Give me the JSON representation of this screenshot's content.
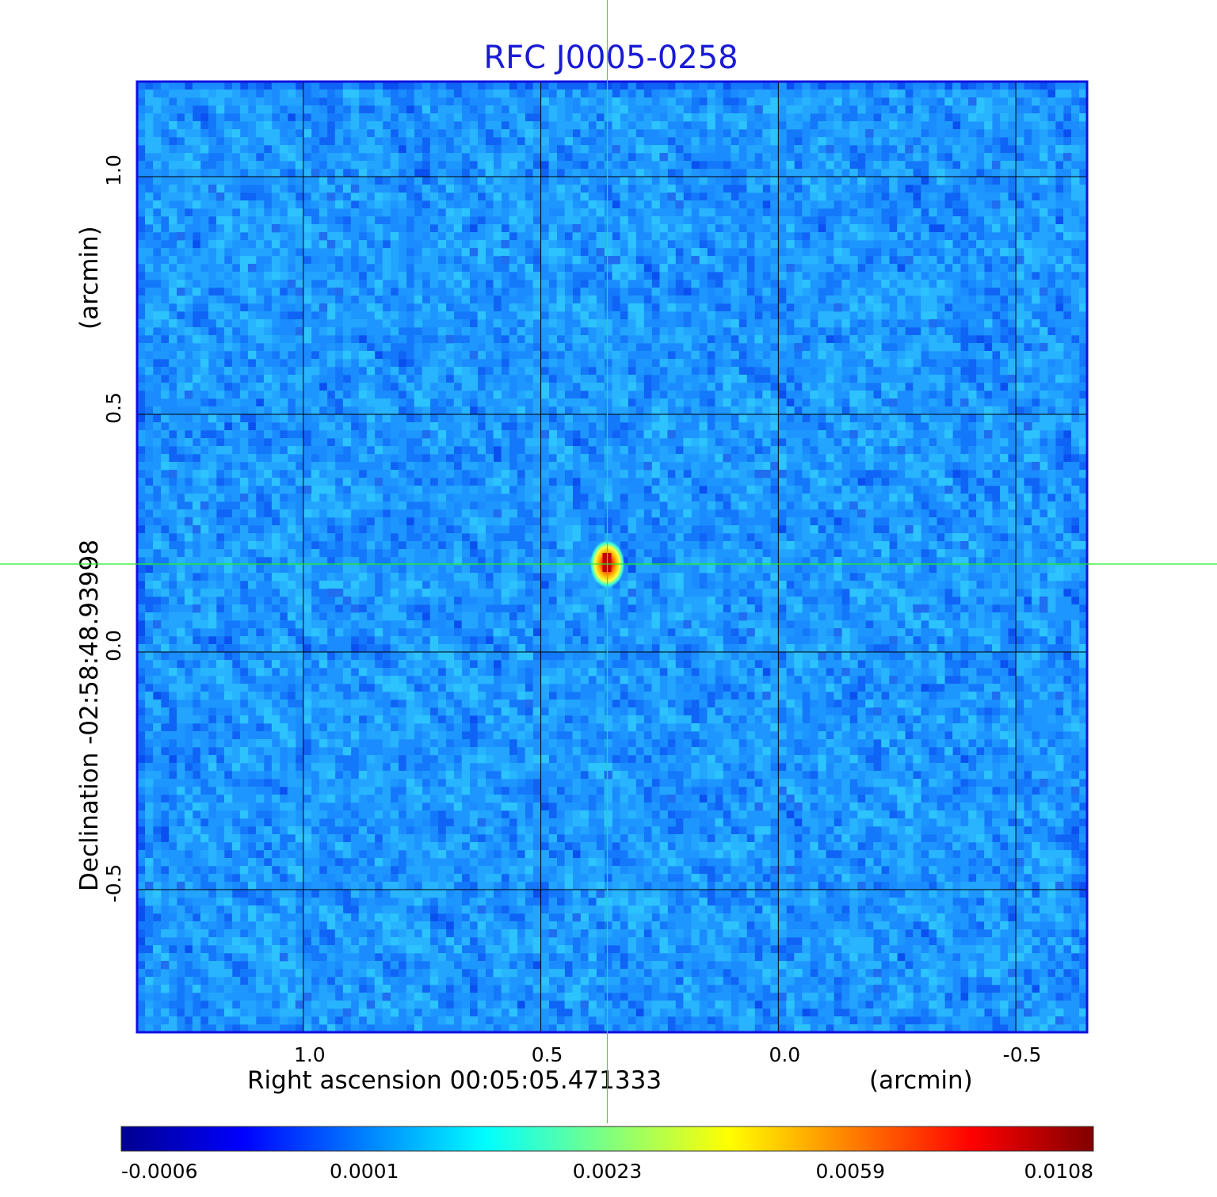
{
  "chart_data": {
    "type": "heatmap",
    "title": "RFC J0005-0258",
    "xlabel": "Right ascension  00:05:05.471333",
    "xunit": "(arcmin)",
    "ylabel": "Declination  -02:58:48.93998",
    "yunit": "(arcmin)",
    "xlim": [
      1.35,
      -0.65
    ],
    "ylim": [
      -0.8,
      1.2
    ],
    "x_ticks": [
      1.0,
      0.5,
      0.0,
      -0.5
    ],
    "x_tick_labels": [
      "1.0",
      "0.5",
      "0.0",
      "-0.5"
    ],
    "y_ticks": [
      1.0,
      0.5,
      0.0,
      -0.5
    ],
    "y_tick_labels": [
      "1.0",
      "0.5",
      "0.0",
      "-0.5"
    ],
    "grid": true,
    "crosshair": {
      "x": 0.36,
      "y": 0.185
    },
    "source_peak": {
      "x": 0.36,
      "y": 0.185,
      "value": 0.0108
    },
    "colorbar": {
      "colormap": "jet",
      "position": "bottom",
      "tick_values": [
        -0.0006,
        0.0001,
        0.0023,
        0.0059,
        0.0108
      ],
      "tick_labels": [
        "-0.0006",
        "0.0001",
        "0.0023",
        "0.0059",
        "0.0108"
      ]
    },
    "colors": {
      "title": "#1a1ad6",
      "frame": "#0000ff",
      "grid": "#000000",
      "crosshair": "#22ee22",
      "background_field": "#1a8cff"
    }
  }
}
